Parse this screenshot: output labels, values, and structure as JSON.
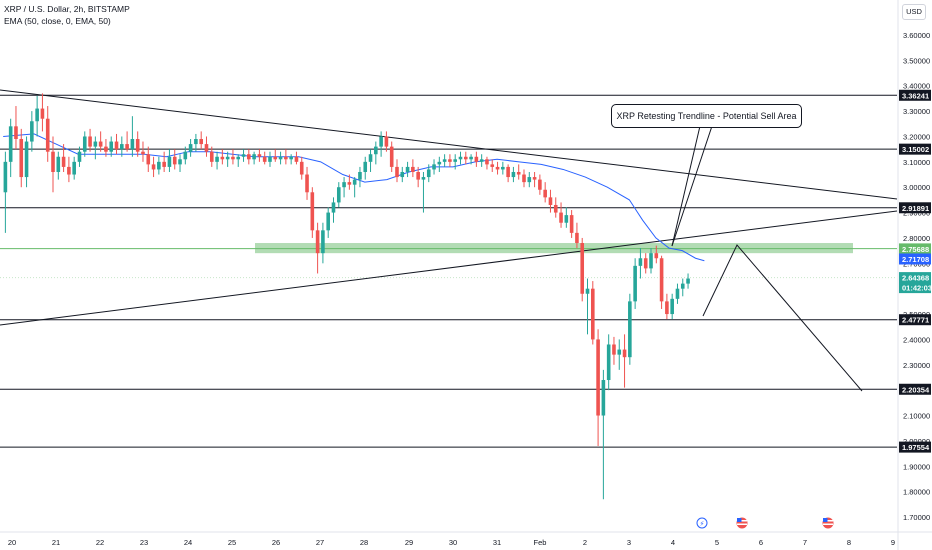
{
  "legend": {
    "title": "XRP / U.S. Dollar, 2h, BITSTAMP",
    "ema": "EMA (50, close, 0, EMA, 50)"
  },
  "currency_button": "USD",
  "callout_text": "XRP Retesting Trendline - Potential Sell Area",
  "colors": {
    "up": "#26a69a",
    "down": "#ef5350",
    "ema": "#2962ff",
    "zone": "#a5d6a7",
    "line": "#131722"
  },
  "chart_data": {
    "type": "candlestick",
    "symbol": "XRP / U.S. Dollar",
    "interval": "2h",
    "exchange": "BITSTAMP",
    "ylim": [
      1.64,
      3.72
    ],
    "y_ticks": [
      "3.60000",
      "3.50000",
      "3.40000",
      "3.30000",
      "3.20000",
      "3.10000",
      "3.00000",
      "2.90000",
      "2.80000",
      "2.70000",
      "2.60000",
      "2.50000",
      "2.40000",
      "2.30000",
      "2.20000",
      "2.10000",
      "2.00000",
      "1.90000",
      "1.80000",
      "1.70000"
    ],
    "x_ticks": [
      "20",
      "21",
      "22",
      "23",
      "24",
      "25",
      "26",
      "27",
      "28",
      "29",
      "30",
      "31",
      "Feb",
      "2",
      "3",
      "4",
      "5",
      "6",
      "7",
      "8",
      "9"
    ],
    "price_labels": [
      {
        "text": "3.36241",
        "value": 3.36241,
        "style": "black"
      },
      {
        "text": "3.15002",
        "value": 3.15002,
        "style": "black"
      },
      {
        "text": "2.91891",
        "value": 2.91891,
        "style": "black"
      },
      {
        "text": "2.75688",
        "value": 2.75688,
        "style": "green"
      },
      {
        "text": "2.71708",
        "value": 2.71708,
        "style": "blue"
      },
      {
        "text": "2.64368",
        "value": 2.64368,
        "style": "teal"
      },
      {
        "text": "01:42:03",
        "value": 2.61,
        "style": "teal"
      },
      {
        "text": "2.47771",
        "value": 2.47771,
        "style": "black"
      },
      {
        "text": "2.20354",
        "value": 2.20354,
        "style": "black"
      },
      {
        "text": "1.97554",
        "value": 1.97554,
        "style": "black"
      }
    ],
    "horizontal_levels": [
      3.36241,
      3.15002,
      2.91891,
      2.47771,
      2.20354,
      1.97554
    ],
    "support_zone": [
      2.74,
      2.78
    ],
    "trendlines": [
      {
        "name": "descending",
        "points": [
          [
            19.5,
            3.4
          ],
          [
            9.0,
            2.94
          ]
        ]
      },
      {
        "name": "ascending",
        "points": [
          [
            19.5,
            2.43
          ],
          [
            9.0,
            2.91
          ]
        ]
      }
    ],
    "projection": [
      [
        4.7,
        2.49
      ],
      [
        5.45,
        2.76
      ],
      [
        7.35,
        2.21
      ]
    ],
    "callout_pointer": [
      [
        4.6,
        2.76
      ],
      [
        5.0,
        3.22
      ]
    ],
    "ema": [
      [
        19.8,
        3.2
      ],
      [
        20.5,
        3.21
      ],
      [
        21.0,
        3.17
      ],
      [
        21.5,
        3.13
      ],
      [
        22.0,
        3.13
      ],
      [
        22.5,
        3.13
      ],
      [
        23.0,
        3.13
      ],
      [
        23.5,
        3.12
      ],
      [
        24.0,
        3.14
      ],
      [
        24.5,
        3.14
      ],
      [
        25.0,
        3.13
      ],
      [
        25.5,
        3.12
      ],
      [
        26.0,
        3.12
      ],
      [
        26.5,
        3.12
      ],
      [
        27.0,
        3.1
      ],
      [
        27.5,
        3.05
      ],
      [
        28.0,
        3.02
      ],
      [
        28.5,
        3.03
      ],
      [
        29.0,
        3.06
      ],
      [
        29.5,
        3.08
      ],
      [
        30.0,
        3.08
      ],
      [
        30.5,
        3.1
      ],
      [
        31.0,
        3.11
      ],
      [
        31.5,
        3.1
      ],
      [
        32.0,
        3.09
      ],
      [
        32.5,
        3.07
      ],
      [
        33.0,
        3.04
      ],
      [
        33.5,
        3.0
      ],
      [
        34.0,
        2.95
      ],
      [
        34.3,
        2.87
      ],
      [
        34.6,
        2.8
      ],
      [
        34.9,
        2.76
      ],
      [
        35.2,
        2.75
      ],
      [
        35.5,
        2.72
      ],
      [
        35.7,
        2.71
      ]
    ],
    "candles": [
      {
        "x": 19.85,
        "o": 2.98,
        "h": 3.14,
        "l": 2.82,
        "c": 3.1
      },
      {
        "x": 19.97,
        "o": 3.1,
        "h": 3.27,
        "l": 3.04,
        "c": 3.24
      },
      {
        "x": 20.09,
        "o": 3.24,
        "h": 3.32,
        "l": 3.15,
        "c": 3.19
      },
      {
        "x": 20.21,
        "o": 3.19,
        "h": 3.23,
        "l": 3.0,
        "c": 3.04
      },
      {
        "x": 20.33,
        "o": 3.04,
        "h": 3.2,
        "l": 3.0,
        "c": 3.18
      },
      {
        "x": 20.45,
        "o": 3.18,
        "h": 3.3,
        "l": 3.14,
        "c": 3.26
      },
      {
        "x": 20.57,
        "o": 3.26,
        "h": 3.36,
        "l": 3.2,
        "c": 3.31
      },
      {
        "x": 20.69,
        "o": 3.31,
        "h": 3.37,
        "l": 3.22,
        "c": 3.27
      },
      {
        "x": 20.81,
        "o": 3.27,
        "h": 3.32,
        "l": 3.1,
        "c": 3.14
      },
      {
        "x": 20.93,
        "o": 3.14,
        "h": 3.2,
        "l": 2.98,
        "c": 3.06
      },
      {
        "x": 21.05,
        "o": 3.06,
        "h": 3.14,
        "l": 3.03,
        "c": 3.12
      },
      {
        "x": 21.17,
        "o": 3.12,
        "h": 3.17,
        "l": 3.06,
        "c": 3.08
      },
      {
        "x": 21.29,
        "o": 3.08,
        "h": 3.12,
        "l": 3.02,
        "c": 3.05
      },
      {
        "x": 21.41,
        "o": 3.05,
        "h": 3.12,
        "l": 3.03,
        "c": 3.1
      },
      {
        "x": 21.53,
        "o": 3.1,
        "h": 3.16,
        "l": 3.08,
        "c": 3.14
      },
      {
        "x": 21.65,
        "o": 3.14,
        "h": 3.22,
        "l": 3.12,
        "c": 3.2
      },
      {
        "x": 21.77,
        "o": 3.2,
        "h": 3.23,
        "l": 3.14,
        "c": 3.16
      },
      {
        "x": 21.89,
        "o": 3.16,
        "h": 3.2,
        "l": 3.11,
        "c": 3.18
      },
      {
        "x": 22.01,
        "o": 3.18,
        "h": 3.22,
        "l": 3.14,
        "c": 3.16
      },
      {
        "x": 22.13,
        "o": 3.16,
        "h": 3.19,
        "l": 3.12,
        "c": 3.14
      },
      {
        "x": 22.25,
        "o": 3.14,
        "h": 3.2,
        "l": 3.12,
        "c": 3.18
      },
      {
        "x": 22.37,
        "o": 3.18,
        "h": 3.21,
        "l": 3.13,
        "c": 3.15
      },
      {
        "x": 22.49,
        "o": 3.15,
        "h": 3.2,
        "l": 3.12,
        "c": 3.17
      },
      {
        "x": 22.61,
        "o": 3.17,
        "h": 3.22,
        "l": 3.14,
        "c": 3.15
      },
      {
        "x": 22.73,
        "o": 3.15,
        "h": 3.28,
        "l": 3.12,
        "c": 3.19
      },
      {
        "x": 22.85,
        "o": 3.19,
        "h": 3.22,
        "l": 3.12,
        "c": 3.14
      },
      {
        "x": 22.97,
        "o": 3.14,
        "h": 3.18,
        "l": 3.1,
        "c": 3.13
      },
      {
        "x": 23.09,
        "o": 3.13,
        "h": 3.16,
        "l": 3.06,
        "c": 3.09
      },
      {
        "x": 23.21,
        "o": 3.09,
        "h": 3.12,
        "l": 3.04,
        "c": 3.07
      },
      {
        "x": 23.33,
        "o": 3.07,
        "h": 3.12,
        "l": 3.05,
        "c": 3.1
      },
      {
        "x": 23.45,
        "o": 3.1,
        "h": 3.14,
        "l": 3.06,
        "c": 3.08
      },
      {
        "x": 23.57,
        "o": 3.08,
        "h": 3.15,
        "l": 3.06,
        "c": 3.12
      },
      {
        "x": 23.69,
        "o": 3.12,
        "h": 3.15,
        "l": 3.07,
        "c": 3.09
      },
      {
        "x": 23.81,
        "o": 3.09,
        "h": 3.13,
        "l": 3.06,
        "c": 3.11
      },
      {
        "x": 23.93,
        "o": 3.11,
        "h": 3.16,
        "l": 3.09,
        "c": 3.14
      },
      {
        "x": 24.05,
        "o": 3.14,
        "h": 3.19,
        "l": 3.12,
        "c": 3.17
      },
      {
        "x": 24.17,
        "o": 3.17,
        "h": 3.21,
        "l": 3.14,
        "c": 3.19
      },
      {
        "x": 24.29,
        "o": 3.19,
        "h": 3.22,
        "l": 3.15,
        "c": 3.17
      },
      {
        "x": 24.41,
        "o": 3.17,
        "h": 3.2,
        "l": 3.12,
        "c": 3.14
      },
      {
        "x": 24.53,
        "o": 3.14,
        "h": 3.16,
        "l": 3.08,
        "c": 3.1
      },
      {
        "x": 24.65,
        "o": 3.1,
        "h": 3.14,
        "l": 3.07,
        "c": 3.12
      },
      {
        "x": 24.77,
        "o": 3.12,
        "h": 3.15,
        "l": 3.09,
        "c": 3.11
      },
      {
        "x": 24.89,
        "o": 3.11,
        "h": 3.14,
        "l": 3.08,
        "c": 3.12
      },
      {
        "x": 25.01,
        "o": 3.12,
        "h": 3.15,
        "l": 3.09,
        "c": 3.11
      },
      {
        "x": 25.13,
        "o": 3.11,
        "h": 3.13,
        "l": 3.08,
        "c": 3.12
      },
      {
        "x": 25.25,
        "o": 3.12,
        "h": 3.15,
        "l": 3.1,
        "c": 3.13
      },
      {
        "x": 25.37,
        "o": 3.13,
        "h": 3.15,
        "l": 3.09,
        "c": 3.11
      },
      {
        "x": 25.49,
        "o": 3.11,
        "h": 3.14,
        "l": 3.09,
        "c": 3.13
      },
      {
        "x": 25.61,
        "o": 3.13,
        "h": 3.15,
        "l": 3.1,
        "c": 3.12
      },
      {
        "x": 25.73,
        "o": 3.12,
        "h": 3.14,
        "l": 3.09,
        "c": 3.1
      },
      {
        "x": 25.85,
        "o": 3.1,
        "h": 3.14,
        "l": 3.08,
        "c": 3.12
      },
      {
        "x": 25.97,
        "o": 3.12,
        "h": 3.15,
        "l": 3.1,
        "c": 3.11
      },
      {
        "x": 26.09,
        "o": 3.11,
        "h": 3.14,
        "l": 3.09,
        "c": 3.12
      },
      {
        "x": 26.21,
        "o": 3.12,
        "h": 3.15,
        "l": 3.09,
        "c": 3.11
      },
      {
        "x": 26.33,
        "o": 3.11,
        "h": 3.13,
        "l": 3.09,
        "c": 3.12
      },
      {
        "x": 26.45,
        "o": 3.12,
        "h": 3.14,
        "l": 3.09,
        "c": 3.1
      },
      {
        "x": 26.57,
        "o": 3.1,
        "h": 3.12,
        "l": 3.03,
        "c": 3.05
      },
      {
        "x": 26.69,
        "o": 3.05,
        "h": 3.08,
        "l": 2.95,
        "c": 2.98
      },
      {
        "x": 26.81,
        "o": 2.98,
        "h": 3.0,
        "l": 2.8,
        "c": 2.83
      },
      {
        "x": 26.93,
        "o": 2.83,
        "h": 2.86,
        "l": 2.66,
        "c": 2.74
      },
      {
        "x": 27.05,
        "o": 2.74,
        "h": 2.86,
        "l": 2.7,
        "c": 2.83
      },
      {
        "x": 27.17,
        "o": 2.83,
        "h": 2.92,
        "l": 2.8,
        "c": 2.9
      },
      {
        "x": 27.29,
        "o": 2.9,
        "h": 2.96,
        "l": 2.86,
        "c": 2.94
      },
      {
        "x": 27.41,
        "o": 2.94,
        "h": 3.02,
        "l": 2.92,
        "c": 3.0
      },
      {
        "x": 27.53,
        "o": 3.0,
        "h": 3.04,
        "l": 2.96,
        "c": 3.02
      },
      {
        "x": 27.65,
        "o": 3.02,
        "h": 3.05,
        "l": 2.99,
        "c": 3.01
      },
      {
        "x": 27.77,
        "o": 3.01,
        "h": 3.04,
        "l": 2.96,
        "c": 3.03
      },
      {
        "x": 27.89,
        "o": 3.03,
        "h": 3.08,
        "l": 3.0,
        "c": 3.06
      },
      {
        "x": 28.01,
        "o": 3.06,
        "h": 3.12,
        "l": 3.03,
        "c": 3.1
      },
      {
        "x": 28.13,
        "o": 3.1,
        "h": 3.15,
        "l": 3.06,
        "c": 3.13
      },
      {
        "x": 28.25,
        "o": 3.13,
        "h": 3.18,
        "l": 3.09,
        "c": 3.16
      },
      {
        "x": 28.37,
        "o": 3.16,
        "h": 3.22,
        "l": 3.12,
        "c": 3.2
      },
      {
        "x": 28.49,
        "o": 3.2,
        "h": 3.22,
        "l": 3.14,
        "c": 3.16
      },
      {
        "x": 28.61,
        "o": 3.16,
        "h": 3.18,
        "l": 3.06,
        "c": 3.08
      },
      {
        "x": 28.73,
        "o": 3.08,
        "h": 3.11,
        "l": 3.02,
        "c": 3.04
      },
      {
        "x": 28.85,
        "o": 3.04,
        "h": 3.08,
        "l": 3.02,
        "c": 3.06
      },
      {
        "x": 28.97,
        "o": 3.06,
        "h": 3.1,
        "l": 3.04,
        "c": 3.08
      },
      {
        "x": 29.09,
        "o": 3.08,
        "h": 3.11,
        "l": 3.04,
        "c": 3.06
      },
      {
        "x": 29.21,
        "o": 3.06,
        "h": 3.08,
        "l": 3.0,
        "c": 3.03
      },
      {
        "x": 29.33,
        "o": 3.03,
        "h": 3.06,
        "l": 2.9,
        "c": 3.04
      },
      {
        "x": 29.45,
        "o": 3.04,
        "h": 3.09,
        "l": 3.02,
        "c": 3.07
      },
      {
        "x": 29.57,
        "o": 3.07,
        "h": 3.11,
        "l": 3.05,
        "c": 3.09
      },
      {
        "x": 29.69,
        "o": 3.09,
        "h": 3.12,
        "l": 3.06,
        "c": 3.1
      },
      {
        "x": 29.81,
        "o": 3.1,
        "h": 3.13,
        "l": 3.08,
        "c": 3.11
      },
      {
        "x": 29.93,
        "o": 3.11,
        "h": 3.13,
        "l": 3.08,
        "c": 3.1
      },
      {
        "x": 30.05,
        "o": 3.1,
        "h": 3.13,
        "l": 3.07,
        "c": 3.11
      },
      {
        "x": 30.17,
        "o": 3.11,
        "h": 3.14,
        "l": 3.09,
        "c": 3.12
      },
      {
        "x": 30.29,
        "o": 3.12,
        "h": 3.14,
        "l": 3.09,
        "c": 3.11
      },
      {
        "x": 30.41,
        "o": 3.11,
        "h": 3.13,
        "l": 3.09,
        "c": 3.12
      },
      {
        "x": 30.53,
        "o": 3.12,
        "h": 3.14,
        "l": 3.08,
        "c": 3.1
      },
      {
        "x": 30.65,
        "o": 3.1,
        "h": 3.13,
        "l": 3.08,
        "c": 3.11
      },
      {
        "x": 30.77,
        "o": 3.11,
        "h": 3.12,
        "l": 3.07,
        "c": 3.09
      },
      {
        "x": 30.89,
        "o": 3.09,
        "h": 3.11,
        "l": 3.06,
        "c": 3.08
      },
      {
        "x": 31.01,
        "o": 3.08,
        "h": 3.1,
        "l": 3.05,
        "c": 3.07
      },
      {
        "x": 31.13,
        "o": 3.07,
        "h": 3.1,
        "l": 3.05,
        "c": 3.08
      },
      {
        "x": 31.25,
        "o": 3.08,
        "h": 3.09,
        "l": 3.02,
        "c": 3.04
      },
      {
        "x": 31.37,
        "o": 3.04,
        "h": 3.08,
        "l": 3.02,
        "c": 3.06
      },
      {
        "x": 31.49,
        "o": 3.06,
        "h": 3.09,
        "l": 3.03,
        "c": 3.05
      },
      {
        "x": 31.61,
        "o": 3.05,
        "h": 3.07,
        "l": 3.0,
        "c": 3.02
      },
      {
        "x": 31.73,
        "o": 3.02,
        "h": 3.06,
        "l": 3.0,
        "c": 3.04
      },
      {
        "x": 31.85,
        "o": 3.04,
        "h": 3.06,
        "l": 3.0,
        "c": 3.03
      },
      {
        "x": 31.97,
        "o": 3.03,
        "h": 3.05,
        "l": 2.97,
        "c": 2.99
      },
      {
        "x": 32.09,
        "o": 2.99,
        "h": 3.02,
        "l": 2.94,
        "c": 2.96
      },
      {
        "x": 32.21,
        "o": 2.96,
        "h": 2.99,
        "l": 2.9,
        "c": 2.93
      },
      {
        "x": 32.33,
        "o": 2.93,
        "h": 2.96,
        "l": 2.88,
        "c": 2.9
      },
      {
        "x": 32.45,
        "o": 2.9,
        "h": 2.94,
        "l": 2.84,
        "c": 2.86
      },
      {
        "x": 32.57,
        "o": 2.86,
        "h": 2.92,
        "l": 2.84,
        "c": 2.89
      },
      {
        "x": 32.69,
        "o": 2.89,
        "h": 2.91,
        "l": 2.8,
        "c": 2.82
      },
      {
        "x": 32.81,
        "o": 2.82,
        "h": 2.86,
        "l": 2.76,
        "c": 2.78
      },
      {
        "x": 32.93,
        "o": 2.78,
        "h": 2.8,
        "l": 2.55,
        "c": 2.58
      },
      {
        "x": 33.05,
        "o": 2.58,
        "h": 2.64,
        "l": 2.42,
        "c": 2.6
      },
      {
        "x": 33.17,
        "o": 2.6,
        "h": 2.63,
        "l": 2.38,
        "c": 2.4
      },
      {
        "x": 33.29,
        "o": 2.4,
        "h": 2.44,
        "l": 1.98,
        "c": 2.1
      },
      {
        "x": 33.41,
        "o": 2.1,
        "h": 2.28,
        "l": 1.77,
        "c": 2.24
      },
      {
        "x": 33.53,
        "o": 2.24,
        "h": 2.42,
        "l": 2.2,
        "c": 2.38
      },
      {
        "x": 33.65,
        "o": 2.38,
        "h": 2.41,
        "l": 2.3,
        "c": 2.34
      },
      {
        "x": 33.77,
        "o": 2.34,
        "h": 2.4,
        "l": 2.28,
        "c": 2.36
      },
      {
        "x": 33.89,
        "o": 2.36,
        "h": 2.42,
        "l": 2.21,
        "c": 2.33
      },
      {
        "x": 34.01,
        "o": 2.33,
        "h": 2.58,
        "l": 2.3,
        "c": 2.55
      },
      {
        "x": 34.13,
        "o": 2.55,
        "h": 2.72,
        "l": 2.52,
        "c": 2.69
      },
      {
        "x": 34.25,
        "o": 2.69,
        "h": 2.76,
        "l": 2.64,
        "c": 2.72
      },
      {
        "x": 34.37,
        "o": 2.72,
        "h": 2.74,
        "l": 2.66,
        "c": 2.68
      },
      {
        "x": 34.49,
        "o": 2.68,
        "h": 2.76,
        "l": 2.66,
        "c": 2.74
      },
      {
        "x": 34.61,
        "o": 2.74,
        "h": 2.77,
        "l": 2.7,
        "c": 2.72
      },
      {
        "x": 34.73,
        "o": 2.72,
        "h": 2.73,
        "l": 2.52,
        "c": 2.55
      },
      {
        "x": 34.85,
        "o": 2.55,
        "h": 2.58,
        "l": 2.48,
        "c": 2.5
      },
      {
        "x": 34.97,
        "o": 2.5,
        "h": 2.58,
        "l": 2.48,
        "c": 2.56
      },
      {
        "x": 35.09,
        "o": 2.56,
        "h": 2.62,
        "l": 2.54,
        "c": 2.6
      },
      {
        "x": 35.21,
        "o": 2.6,
        "h": 2.64,
        "l": 2.57,
        "c": 2.62
      },
      {
        "x": 35.33,
        "o": 2.62,
        "h": 2.66,
        "l": 2.6,
        "c": 2.64
      }
    ]
  }
}
